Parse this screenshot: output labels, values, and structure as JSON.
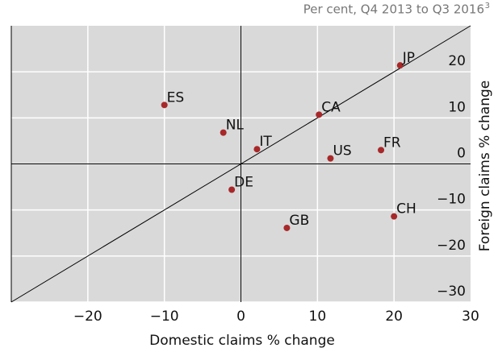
{
  "chart_data": {
    "type": "scatter",
    "subtitle": "Per cent, Q4 2013 to Q3 2016",
    "subtitle_note": "3",
    "x_label": "Domestic claims % change",
    "y_label": "Foreign claims % change",
    "labels": [
      "JP",
      "ES",
      "CA",
      "NL",
      "IT",
      "FR",
      "US",
      "DE",
      "CH",
      "GB"
    ],
    "x": [
      20.8,
      -10,
      10.2,
      -2.3,
      2.1,
      18.3,
      11.7,
      -1.2,
      20,
      6
    ],
    "values": [
      21.4,
      12.8,
      10.7,
      6.8,
      3.2,
      3,
      1.2,
      -5.6,
      -11.4,
      -13.9
    ],
    "color": "#a8282a",
    "xlim": [
      -30,
      30
    ],
    "ylim": [
      -30,
      30
    ],
    "xticks": [
      {
        "value": -20,
        "label": "−20"
      },
      {
        "value": -10,
        "label": "−10"
      },
      0,
      10,
      20,
      30
    ],
    "yticks": [
      {
        "value": -30,
        "label": "−30"
      },
      {
        "value": -20,
        "label": "−20"
      },
      {
        "value": -10,
        "label": "−10"
      },
      0,
      10,
      20
    ],
    "grid": true
  }
}
